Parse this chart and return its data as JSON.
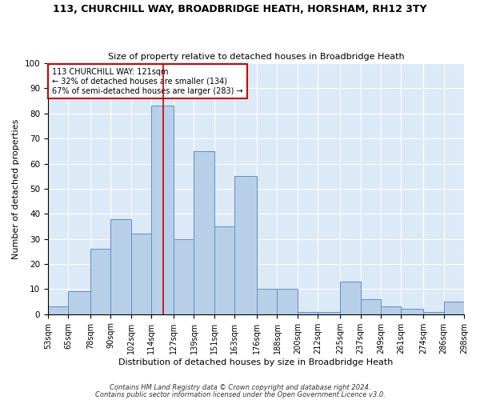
{
  "title": "113, CHURCHILL WAY, BROADBRIDGE HEATH, HORSHAM, RH12 3TY",
  "subtitle": "Size of property relative to detached houses in Broadbridge Heath",
  "xlabel": "Distribution of detached houses by size in Broadbridge Heath",
  "ylabel": "Number of detached properties",
  "footnote1": "Contains HM Land Registry data © Crown copyright and database right 2024.",
  "footnote2": "Contains public sector information licensed under the Open Government Licence v3.0.",
  "annotation_line1": "113 CHURCHILL WAY: 121sqm",
  "annotation_line2": "← 32% of detached houses are smaller (134)",
  "annotation_line3": "67% of semi-detached houses are larger (283) →",
  "bar_edges": [
    53,
    65,
    78,
    90,
    102,
    114,
    127,
    139,
    151,
    163,
    176,
    188,
    200,
    212,
    225,
    237,
    249,
    261,
    274,
    286,
    298
  ],
  "bar_heights": [
    3,
    9,
    26,
    38,
    32,
    83,
    30,
    65,
    35,
    55,
    10,
    10,
    1,
    1,
    13,
    6,
    3,
    2,
    1,
    5
  ],
  "bar_color": "#b8cfe8",
  "bar_edgecolor": "#5b8fc9",
  "ref_line_x": 121,
  "ref_line_color": "#cc0000",
  "ylim": [
    0,
    100
  ],
  "yticks": [
    0,
    10,
    20,
    30,
    40,
    50,
    60,
    70,
    80,
    90,
    100
  ],
  "bg_color": "#dce9f7",
  "grid_color": "#ffffff",
  "annotation_box_edgecolor": "#cc0000",
  "title_fontsize": 9,
  "subtitle_fontsize": 8
}
